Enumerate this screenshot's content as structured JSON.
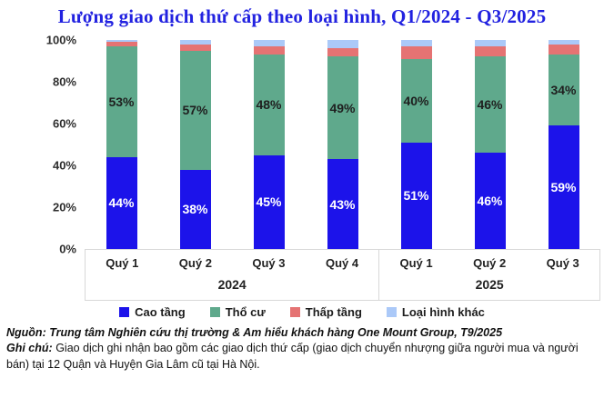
{
  "title": "Lượng giao dịch thứ cấp theo loại hình, Q1/2024 - Q3/2025",
  "chart_data": {
    "type": "bar",
    "stacked": true,
    "percent_stacked": true,
    "title": "Lượng giao dịch thứ cấp theo loại hình, Q1/2024 - Q3/2025",
    "ylim": [
      0,
      100
    ],
    "y_ticks": [
      "100%",
      "80%",
      "60%",
      "40%",
      "20%",
      "0%"
    ],
    "grid": false,
    "legend_position": "bottom",
    "groups": [
      {
        "year": "2024",
        "quarters": [
          "Quý 1",
          "Quý 2",
          "Quý 3",
          "Quý 4"
        ]
      },
      {
        "year": "2025",
        "quarters": [
          "Quý 1",
          "Quý 2",
          "Quý 3"
        ]
      }
    ],
    "categories": [
      "Quý 1 2024",
      "Quý 2 2024",
      "Quý 3 2024",
      "Quý 4 2024",
      "Quý 1 2025",
      "Quý 2 2025",
      "Quý 3 2025"
    ],
    "series": [
      {
        "name": "Cao tầng",
        "color": "#1c13ea",
        "label_color": "#ffffff",
        "show_labels": true,
        "values": [
          44,
          38,
          45,
          43,
          51,
          46,
          59
        ]
      },
      {
        "name": "Thổ cư",
        "color": "#5fa98c",
        "label_color": "#1f1f1f",
        "show_labels": true,
        "values": [
          53,
          57,
          48,
          49,
          40,
          46,
          34
        ]
      },
      {
        "name": "Thấp tầng",
        "color": "#e57373",
        "label_color": "#1f1f1f",
        "show_labels": false,
        "values": [
          2,
          3,
          4,
          4,
          6,
          5,
          5
        ]
      },
      {
        "name": "Loại hình khác",
        "color": "#abc9f8",
        "label_color": "#1f1f1f",
        "show_labels": false,
        "values": [
          1,
          2,
          3,
          4,
          3,
          3,
          2
        ]
      }
    ],
    "unit": "%"
  },
  "footer": {
    "source_label": "Nguồn:",
    "source_text": "Trung tâm Nghiên cứu thị trường & Am hiểu khách hàng One Mount Group, T9/2025",
    "note_label": "Ghi chú:",
    "note_text": "Giao dịch ghi nhận bao gồm các giao dịch thứ cấp (giao dịch chuyển nhượng giữa người mua và người bán) tại 12 Quận và Huyện Gia Lâm cũ tại Hà Nội."
  },
  "colors": {
    "title": "#2222e0",
    "axis_box_border": "#d8d8d8",
    "tick_text": "#2e2e2e"
  }
}
